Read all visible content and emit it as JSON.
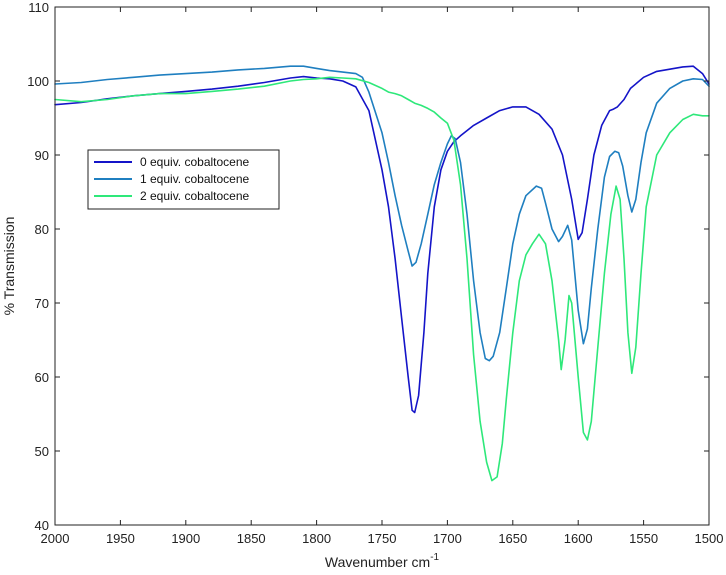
{
  "chart_data": {
    "type": "line",
    "xlabel": "Wavenumber cm",
    "xlabel_superscript": "-1",
    "ylabel": "% Transmission",
    "xlim": [
      2000,
      1500
    ],
    "ylim": [
      40,
      110
    ],
    "x_ticks": [
      2000,
      1950,
      1900,
      1850,
      1800,
      1750,
      1700,
      1650,
      1600,
      1550,
      1500
    ],
    "y_ticks": [
      40,
      50,
      60,
      70,
      80,
      90,
      100,
      110
    ],
    "x_reversed": true,
    "grid": false,
    "legend_position": "upper-left",
    "series": [
      {
        "name": "0 equiv. cobaltocene",
        "color": "#1414c8",
        "x": [
          2000,
          1980,
          1960,
          1940,
          1920,
          1900,
          1880,
          1860,
          1840,
          1820,
          1810,
          1800,
          1790,
          1780,
          1770,
          1760,
          1750,
          1745,
          1740,
          1735,
          1730,
          1727,
          1725,
          1722,
          1718,
          1715,
          1710,
          1705,
          1700,
          1695,
          1690,
          1685,
          1680,
          1670,
          1660,
          1650,
          1640,
          1630,
          1620,
          1612,
          1605,
          1600,
          1597,
          1593,
          1588,
          1582,
          1576,
          1573,
          1570,
          1565,
          1560,
          1550,
          1540,
          1530,
          1520,
          1512,
          1505,
          1500
        ],
        "y": [
          96.8,
          97.1,
          97.6,
          98.0,
          98.3,
          98.6,
          98.9,
          99.3,
          99.8,
          100.4,
          100.6,
          100.4,
          100.3,
          100.0,
          99.2,
          96.0,
          88.0,
          83.0,
          76.0,
          68.0,
          60.0,
          55.5,
          55.2,
          57.5,
          66.0,
          74.0,
          83.0,
          88.0,
          90.5,
          91.8,
          92.6,
          93.3,
          94.0,
          95.0,
          96.0,
          96.5,
          96.5,
          95.5,
          93.5,
          90.0,
          84.0,
          78.6,
          79.5,
          84.0,
          90.0,
          94.0,
          96.0,
          96.2,
          96.5,
          97.5,
          99.0,
          100.5,
          101.3,
          101.6,
          101.9,
          102.0,
          101.0,
          99.6
        ]
      },
      {
        "name": "1 equiv. cobaltocene",
        "color": "#1f7fc0",
        "x": [
          2000,
          1980,
          1960,
          1940,
          1920,
          1900,
          1880,
          1860,
          1840,
          1820,
          1810,
          1800,
          1790,
          1780,
          1770,
          1765,
          1760,
          1750,
          1745,
          1740,
          1735,
          1730,
          1727,
          1724,
          1720,
          1715,
          1710,
          1705,
          1700,
          1697,
          1694,
          1690,
          1685,
          1680,
          1675,
          1671,
          1668,
          1665,
          1660,
          1655,
          1650,
          1645,
          1640,
          1632,
          1628,
          1625,
          1620,
          1615,
          1612,
          1608,
          1605,
          1600,
          1596,
          1593,
          1590,
          1585,
          1580,
          1576,
          1572,
          1569,
          1566,
          1562,
          1559,
          1556,
          1552,
          1548,
          1540,
          1530,
          1520,
          1512,
          1505,
          1500
        ],
        "y": [
          99.6,
          99.8,
          100.2,
          100.5,
          100.8,
          101.0,
          101.2,
          101.5,
          101.7,
          102.0,
          102.0,
          101.7,
          101.4,
          101.2,
          101.0,
          100.5,
          98.5,
          93.0,
          89.0,
          84.5,
          80.5,
          77.0,
          75.0,
          75.5,
          78.0,
          82.0,
          86.0,
          89.0,
          91.5,
          92.6,
          92.2,
          89.0,
          82.0,
          73.0,
          66.0,
          62.5,
          62.2,
          62.8,
          66.0,
          72.0,
          78.0,
          82.0,
          84.5,
          85.8,
          85.5,
          83.5,
          80.0,
          78.3,
          79.0,
          80.5,
          78.5,
          69.0,
          64.5,
          66.5,
          72.0,
          80.0,
          87.0,
          89.8,
          90.5,
          90.3,
          88.5,
          84.5,
          82.3,
          84.0,
          89.0,
          93.0,
          97.0,
          99.0,
          100.0,
          100.3,
          100.2,
          99.3
        ]
      },
      {
        "name": "2 equiv. cobaltocene",
        "color": "#2ee87a",
        "x": [
          2000,
          1980,
          1960,
          1940,
          1920,
          1900,
          1880,
          1860,
          1840,
          1820,
          1810,
          1800,
          1790,
          1780,
          1770,
          1760,
          1750,
          1745,
          1740,
          1735,
          1730,
          1725,
          1720,
          1715,
          1710,
          1705,
          1700,
          1695,
          1690,
          1685,
          1680,
          1675,
          1670,
          1666,
          1662,
          1658,
          1655,
          1650,
          1645,
          1640,
          1635,
          1630,
          1625,
          1620,
          1615,
          1613,
          1610,
          1607,
          1605,
          1600,
          1596,
          1593,
          1590,
          1585,
          1580,
          1575,
          1571,
          1568,
          1565,
          1562,
          1559,
          1556,
          1552,
          1548,
          1540,
          1530,
          1520,
          1512,
          1505,
          1500
        ],
        "y": [
          97.5,
          97.2,
          97.5,
          98.0,
          98.3,
          98.3,
          98.6,
          98.9,
          99.3,
          100.0,
          100.2,
          100.3,
          100.5,
          100.4,
          100.3,
          99.8,
          99.0,
          98.5,
          98.3,
          98.0,
          97.5,
          97.0,
          96.7,
          96.3,
          95.8,
          95.0,
          94.3,
          92.0,
          86.0,
          76.0,
          63.0,
          54.0,
          48.5,
          46.0,
          46.5,
          51.0,
          57.0,
          66.0,
          73.0,
          76.5,
          78.0,
          79.3,
          78.0,
          73.0,
          65.0,
          61.0,
          65.0,
          71.0,
          70.0,
          60.0,
          52.5,
          51.5,
          54.0,
          64.0,
          74.0,
          82.0,
          85.8,
          84.0,
          76.0,
          66.0,
          60.5,
          64.0,
          74.0,
          83.0,
          90.0,
          93.0,
          94.8,
          95.5,
          95.3,
          95.3
        ]
      }
    ]
  }
}
